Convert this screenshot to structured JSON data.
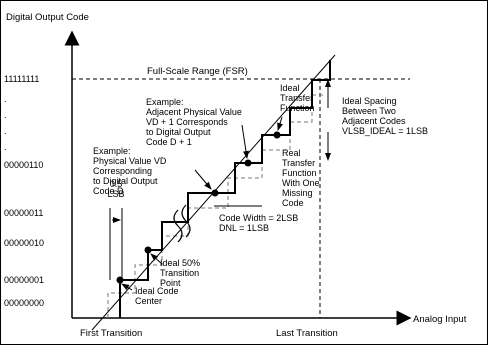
{
  "axes": {
    "y_title": "Digital Output Code",
    "x_title": "Analog Input",
    "first_transition": "First Transition",
    "last_transition": "Last Transition",
    "y_codes": [
      "11111111",
      ".",
      ".",
      ".",
      ".",
      "00000110",
      "00000011",
      "00000010",
      "00000001",
      "00000000"
    ]
  },
  "labels": {
    "fsr": "Full-Scale Range (FSR)",
    "example_d1": [
      "Example:",
      "Adjacent Physical Value",
      "VD + 1 Corresponds",
      "to Digital Output",
      "Code D + 1"
    ],
    "example_d": [
      "Example:",
      "Physical Value VD",
      "Corresponding",
      "to Digital Output",
      "Code D"
    ],
    "ideal_tf": [
      "Ideal",
      "Transfer",
      "Function"
    ],
    "ideal_spacing": [
      "Ideal Spacing",
      "Between Two",
      "Adjacent Codes",
      "VLSB_IDEAL = 1LSB"
    ],
    "real_tf": [
      "Real",
      "Transfer",
      "Function",
      "With One",
      "Missing",
      "Code"
    ],
    "half_lsb": [
      "0.5",
      "LSB"
    ],
    "code_width": [
      "Code Width = 2LSB",
      "DNL = 1LSB"
    ],
    "transition_point": [
      "Ideal 50%",
      "Transition",
      "Point"
    ],
    "code_center": [
      "Ideal Code",
      "Center"
    ]
  }
}
